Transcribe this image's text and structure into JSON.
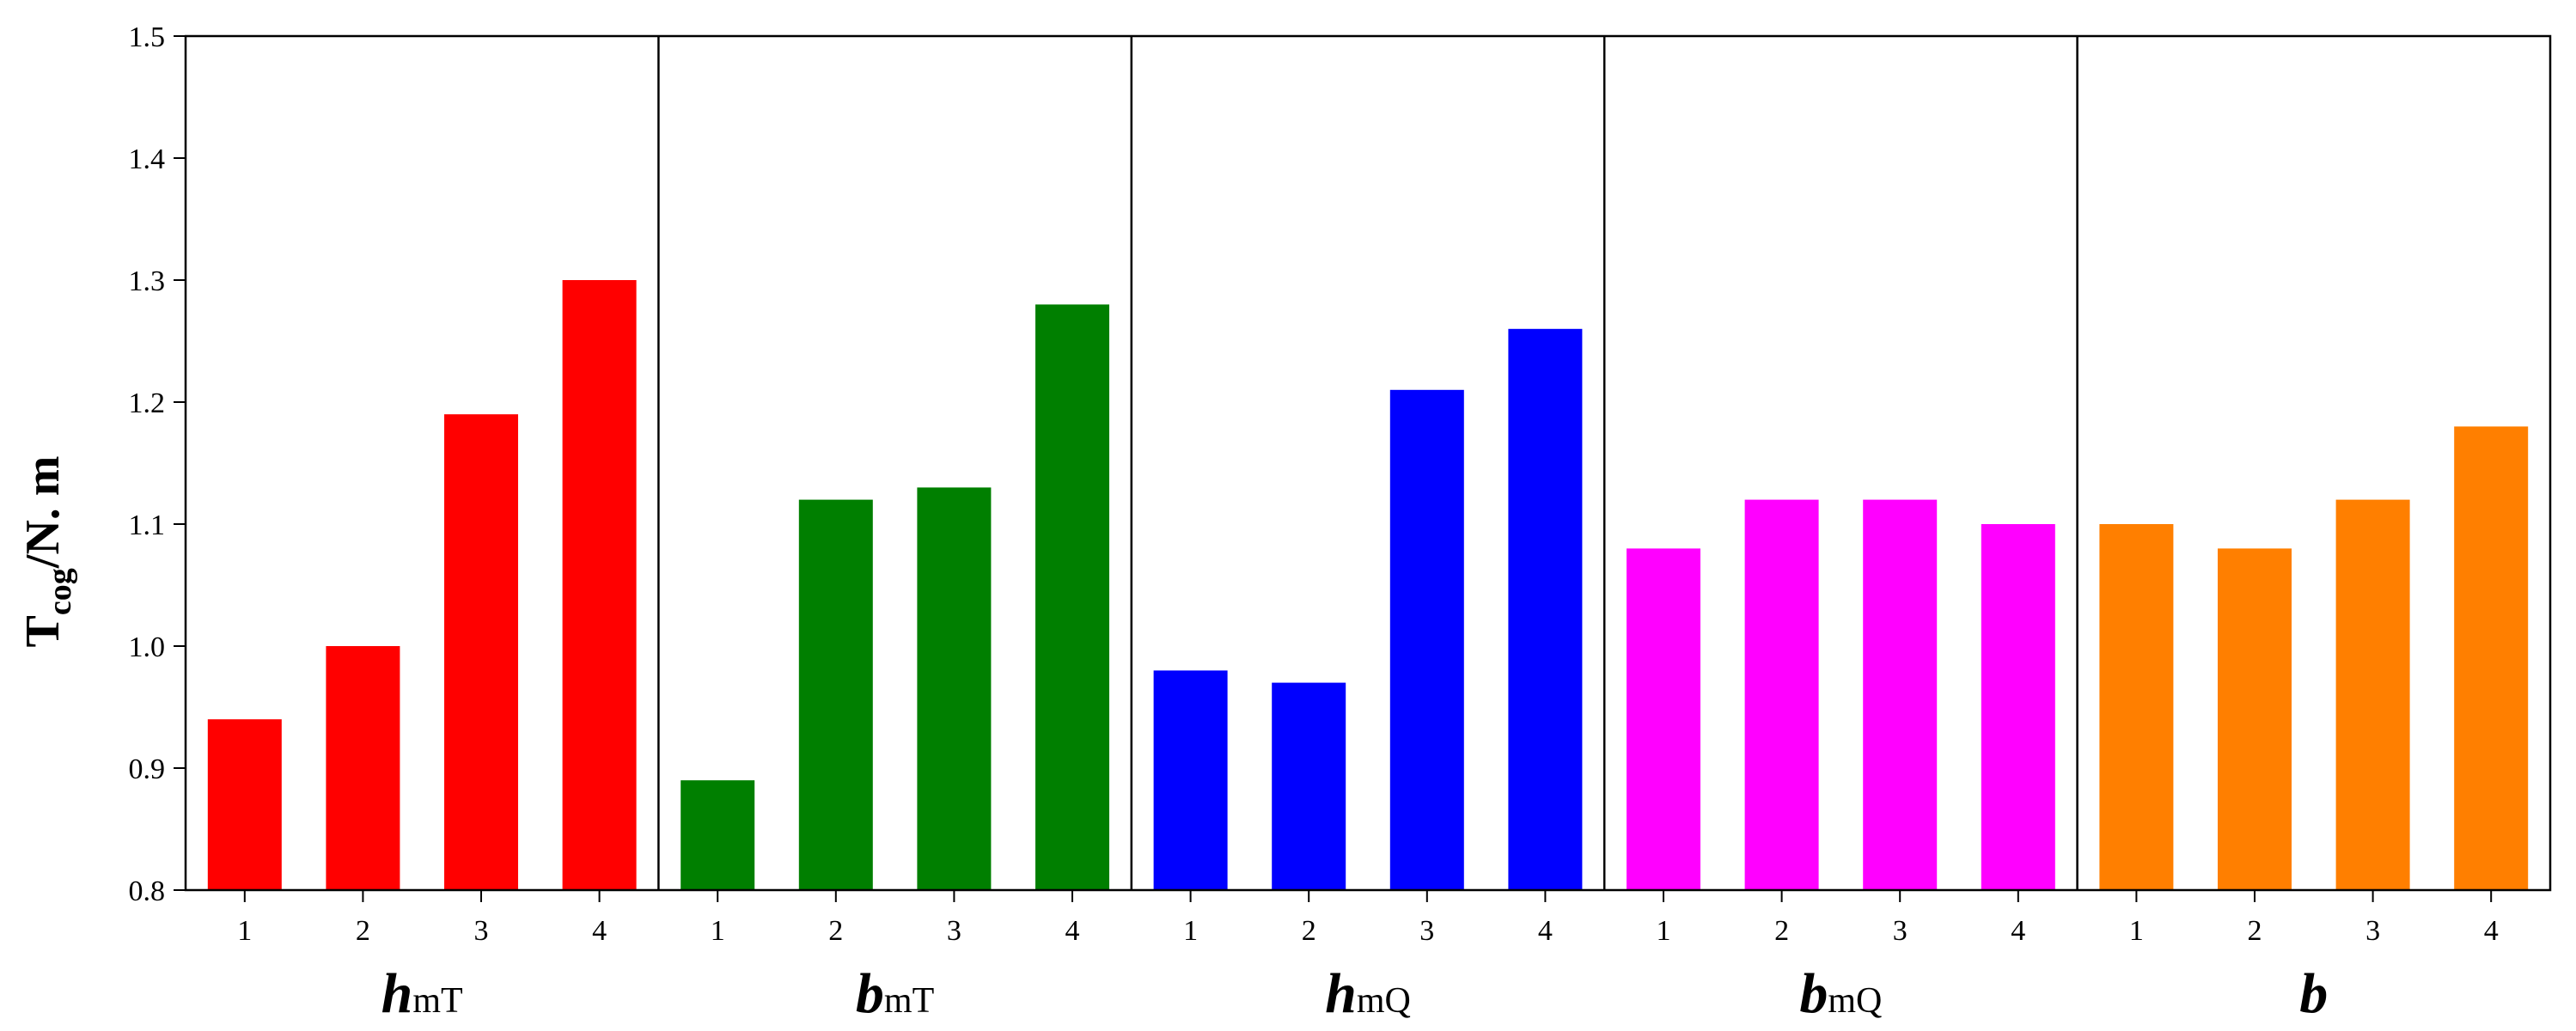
{
  "chart_data": {
    "type": "bar",
    "ylabel": {
      "main": "T",
      "sub": "cog",
      "rest": "/N. m"
    },
    "ylim": [
      0.8,
      1.5
    ],
    "yticks": [
      "0.8",
      "0.9",
      "1.0",
      "1.1",
      "1.2",
      "1.3",
      "1.4",
      "1.5"
    ],
    "grid": false,
    "groups": [
      {
        "label_main": "h",
        "label_sub": "mT",
        "color": "#ff0000",
        "categories": [
          "1",
          "2",
          "3",
          "4"
        ],
        "values": [
          0.94,
          1.0,
          1.19,
          1.3
        ]
      },
      {
        "label_main": "b",
        "label_sub": "mT",
        "color": "#007f00",
        "categories": [
          "1",
          "2",
          "3",
          "4"
        ],
        "values": [
          0.89,
          1.12,
          1.13,
          1.28
        ]
      },
      {
        "label_main": "h",
        "label_sub": "mQ",
        "color": "#0000ff",
        "categories": [
          "1",
          "2",
          "3",
          "4"
        ],
        "values": [
          0.98,
          0.97,
          1.21,
          1.26
        ]
      },
      {
        "label_main": "b",
        "label_sub": "mQ",
        "color": "#ff00ff",
        "categories": [
          "1",
          "2",
          "3",
          "4"
        ],
        "values": [
          1.08,
          1.12,
          1.12,
          1.1
        ]
      },
      {
        "label_main": "b",
        "label_sub": "",
        "color": "#ff7f00",
        "categories": [
          "1",
          "2",
          "3",
          "4"
        ],
        "values": [
          1.1,
          1.08,
          1.12,
          1.18
        ]
      }
    ]
  }
}
